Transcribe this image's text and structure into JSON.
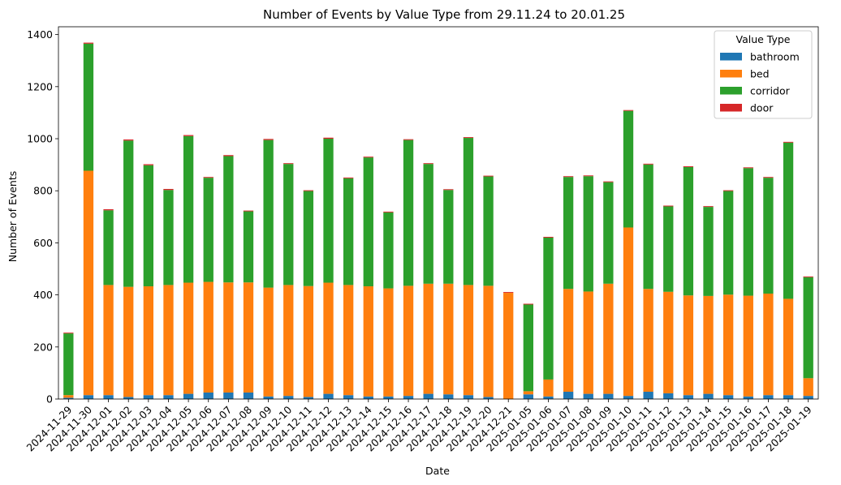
{
  "chart_data": {
    "type": "bar",
    "stacked": true,
    "title": "Number of Events by Value Type from 29.11.24 to 20.01.25",
    "xlabel": "Date",
    "ylabel": "Number of Events",
    "ylim": [
      0,
      1430
    ],
    "yticks": [
      0,
      200,
      400,
      600,
      800,
      1000,
      1200,
      1400
    ],
    "grid": false,
    "legend": {
      "title": "Value Type",
      "placement": "top-right"
    },
    "categories": [
      "2024-11-29",
      "2024-11-30",
      "2024-12-01",
      "2024-12-02",
      "2024-12-03",
      "2024-12-04",
      "2024-12-05",
      "2024-12-06",
      "2024-12-07",
      "2024-12-08",
      "2024-12-09",
      "2024-12-10",
      "2024-12-11",
      "2024-12-12",
      "2024-12-13",
      "2024-12-14",
      "2024-12-15",
      "2024-12-16",
      "2024-12-17",
      "2024-12-18",
      "2024-12-19",
      "2024-12-20",
      "2024-12-21",
      "2025-01-05",
      "2025-01-06",
      "2025-01-07",
      "2025-01-08",
      "2025-01-09",
      "2025-01-10",
      "2025-01-11",
      "2025-01-12",
      "2025-01-13",
      "2025-01-14",
      "2025-01-15",
      "2025-01-16",
      "2025-01-17",
      "2025-01-18",
      "2025-01-19"
    ],
    "series": [
      {
        "name": "bathroom",
        "color": "#1f77b4",
        "values": [
          5,
          15,
          15,
          8,
          15,
          15,
          20,
          25,
          25,
          25,
          10,
          12,
          8,
          20,
          15,
          10,
          10,
          12,
          20,
          18,
          15,
          8,
          0,
          18,
          10,
          28,
          20,
          20,
          12,
          28,
          22,
          15,
          20,
          15,
          10,
          15,
          15,
          12
        ]
      },
      {
        "name": "bed",
        "color": "#ff7f0e",
        "values": [
          10,
          862,
          423,
          423,
          418,
          423,
          427,
          425,
          423,
          423,
          418,
          426,
          426,
          427,
          423,
          423,
          415,
          423,
          423,
          425,
          423,
          427,
          408,
          12,
          65,
          395,
          393,
          423,
          647,
          395,
          390,
          383,
          376,
          386,
          387,
          390,
          370,
          68
        ]
      },
      {
        "name": "corridor",
        "color": "#2ca02c",
        "values": [
          237,
          488,
          287,
          562,
          465,
          365,
          563,
          400,
          485,
          273,
          567,
          465,
          365,
          553,
          410,
          495,
          292,
          560,
          460,
          360,
          565,
          420,
          0,
          333,
          545,
          430,
          443,
          390,
          448,
          478,
          328,
          493,
          342,
          398,
          490,
          445,
          600,
          388
        ]
      },
      {
        "name": "door",
        "color": "#d62728",
        "values": [
          3,
          4,
          4,
          4,
          4,
          4,
          4,
          3,
          4,
          3,
          4,
          3,
          3,
          4,
          3,
          3,
          3,
          3,
          3,
          3,
          3,
          3,
          3,
          3,
          3,
          3,
          3,
          3,
          3,
          3,
          3,
          3,
          3,
          3,
          3,
          3,
          3,
          3
        ]
      }
    ]
  }
}
